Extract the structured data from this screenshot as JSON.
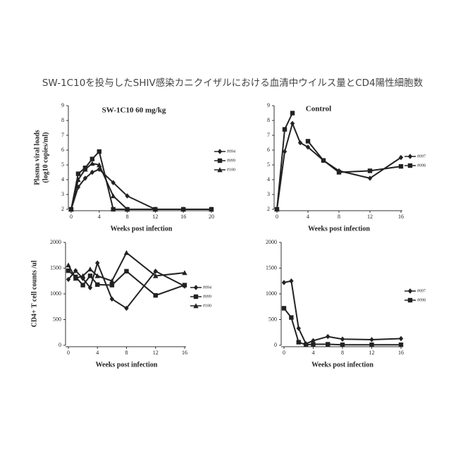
{
  "title": "SW-1C10を投与したSHIV感染カニクイザルにおける血清中ウイルス量とCD4陽性細胞数",
  "chart_data": [
    {
      "type": "line",
      "title": "SW-1C10  60 mg/kg",
      "ylabel": [
        "Plasma viral loads",
        "(log10 copies/ml)"
      ],
      "xlabel": "Weeks post infection",
      "x": [
        0,
        1,
        2,
        3,
        4,
        6,
        8,
        12,
        16,
        20
      ],
      "xlim": [
        0,
        20
      ],
      "xticks": [
        0,
        4,
        8,
        12,
        16,
        20
      ],
      "ylim": [
        2,
        9
      ],
      "yticks": [
        2,
        3,
        4,
        5,
        6,
        7,
        8,
        9
      ],
      "series": [
        {
          "name": "#094",
          "color": "#222222",
          "marker": "diamond",
          "values": [
            2,
            3.5,
            4.1,
            4.5,
            4.7,
            3.8,
            2.9,
            2,
            2,
            2
          ]
        },
        {
          "name": "#099",
          "color": "#222222",
          "marker": "square",
          "values": [
            2,
            4.4,
            4.8,
            5.4,
            5.9,
            2,
            2,
            2,
            2,
            2
          ]
        },
        {
          "name": "#100",
          "color": "#222222",
          "marker": "triangle",
          "values": [
            2,
            4.0,
            4.7,
            5.1,
            5.0,
            2.9,
            2,
            2,
            2,
            2
          ]
        }
      ]
    },
    {
      "type": "line",
      "title": "Control",
      "xlabel": "Weeks post infection",
      "x": [
        0,
        1,
        2,
        3,
        4,
        6,
        8,
        12,
        16
      ],
      "xlim": [
        0,
        16
      ],
      "xticks": [
        0,
        4,
        8,
        12,
        16
      ],
      "ylim": [
        2,
        9
      ],
      "yticks": [
        2,
        3,
        4,
        5,
        6,
        7,
        8,
        9
      ],
      "series": [
        {
          "name": "#097",
          "color": "#222222",
          "marker": "diamond",
          "values": [
            2,
            5.9,
            7.8,
            6.5,
            6.2,
            5.3,
            4.6,
            4.1,
            5.5
          ]
        },
        {
          "name": "#098",
          "color": "#222222",
          "marker": "square",
          "values": [
            2,
            7.4,
            8.5,
            null,
            6.6,
            5.3,
            4.5,
            4.6,
            4.9
          ]
        }
      ]
    },
    {
      "type": "line",
      "ylabel": [
        "CD4+ T cell counts /ul"
      ],
      "xlabel": "Weeks post infection",
      "x": [
        0,
        1,
        2,
        3,
        4,
        6,
        8,
        12,
        16
      ],
      "xlim": [
        0,
        16
      ],
      "xticks": [
        0,
        4,
        8,
        12,
        16
      ],
      "ylim": [
        0,
        2000
      ],
      "yticks": [
        0,
        500,
        1000,
        1500,
        2000
      ],
      "series": [
        {
          "name": "#094",
          "color": "#222222",
          "marker": "diamond",
          "values": [
            1280,
            1450,
            1300,
            1120,
            1600,
            900,
            720,
            1440,
            1150
          ]
        },
        {
          "name": "#099",
          "color": "#222222",
          "marker": "square",
          "values": [
            1450,
            1330,
            1170,
            1350,
            1180,
            1170,
            1440,
            970,
            1170
          ]
        },
        {
          "name": "#100",
          "color": "#222222",
          "marker": "triangle",
          "values": [
            1560,
            1300,
            1350,
            1480,
            1350,
            1250,
            1800,
            1350,
            1410
          ]
        }
      ]
    },
    {
      "type": "line",
      "xlabel": "Weeks post infection",
      "x": [
        0,
        1,
        2,
        3,
        4,
        6,
        8,
        12,
        16
      ],
      "xlim": [
        0,
        16
      ],
      "xticks": [
        0,
        4,
        8,
        12,
        16
      ],
      "ylim": [
        0,
        2000
      ],
      "yticks": [
        0,
        500,
        1000,
        1500,
        2000
      ],
      "series": [
        {
          "name": "#097",
          "color": "#222222",
          "marker": "diamond",
          "values": [
            1220,
            1250,
            330,
            30,
            90,
            170,
            120,
            110,
            130
          ]
        },
        {
          "name": "#098",
          "color": "#222222",
          "marker": "square",
          "values": [
            720,
            540,
            60,
            10,
            20,
            20,
            10,
            10,
            10
          ]
        }
      ]
    }
  ]
}
